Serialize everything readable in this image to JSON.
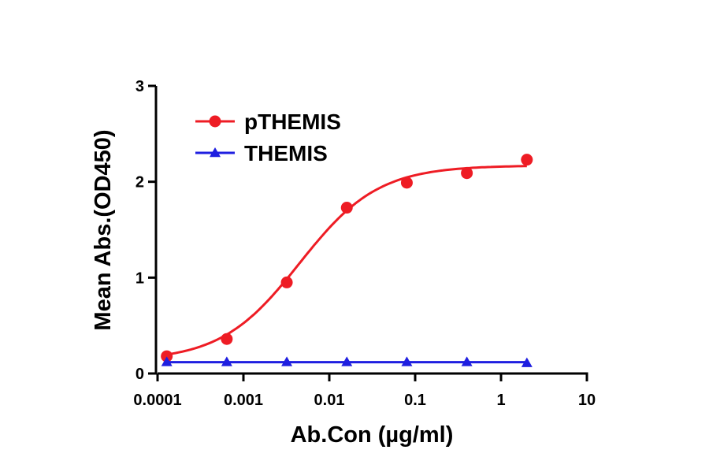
{
  "chart_data": {
    "type": "scatter",
    "xlabel": "Ab.Con (µg/ml)",
    "ylabel": "Mean Abs.(OD450)",
    "xscale": "log",
    "xlim": [
      0.0001,
      10
    ],
    "ylim": [
      0,
      3
    ],
    "x_ticks": [
      {
        "value": 0.0001,
        "label": "0.0001"
      },
      {
        "value": 0.001,
        "label": "0.001"
      },
      {
        "value": 0.01,
        "label": "0.01"
      },
      {
        "value": 0.1,
        "label": "0.1"
      },
      {
        "value": 1,
        "label": "1"
      },
      {
        "value": 10,
        "label": "10"
      }
    ],
    "y_ticks": [
      {
        "value": 0,
        "label": "0"
      },
      {
        "value": 1,
        "label": "1"
      },
      {
        "value": 2,
        "label": "2"
      },
      {
        "value": 3,
        "label": "3"
      }
    ],
    "grid": false,
    "legend_position": "top-left",
    "series": [
      {
        "name": "pTHEMIS",
        "color": "#ee1c24",
        "marker": "circle",
        "fit": "sigmoidal",
        "x": [
          0.000128,
          0.00064,
          0.0032,
          0.016,
          0.08,
          0.4,
          2
        ],
        "y": [
          0.18,
          0.36,
          0.95,
          1.73,
          1.99,
          2.09,
          2.23
        ]
      },
      {
        "name": "THEMIS",
        "color": "#1f1fe0",
        "marker": "triangle",
        "fit": "flat",
        "x": [
          0.000128,
          0.00064,
          0.0032,
          0.016,
          0.08,
          0.4,
          2
        ],
        "y": [
          0.12,
          0.12,
          0.12,
          0.12,
          0.12,
          0.12,
          0.11
        ]
      }
    ]
  }
}
